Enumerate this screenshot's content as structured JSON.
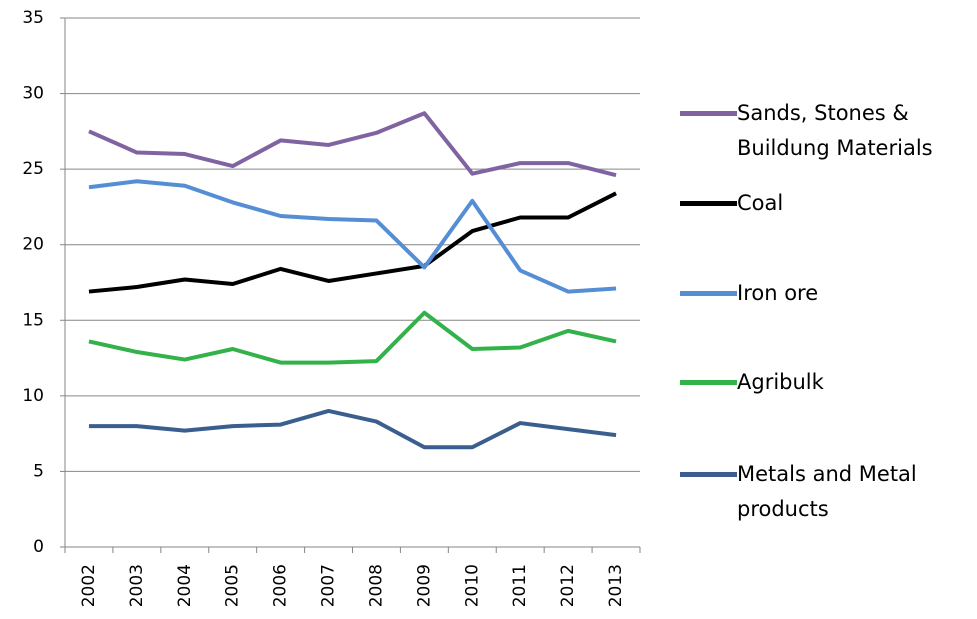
{
  "chart_data": {
    "type": "line",
    "categories": [
      "2002",
      "2003",
      "2004",
      "2005",
      "2006",
      "2007",
      "2008",
      "2009",
      "2010",
      "2011",
      "2012",
      "2013"
    ],
    "series": [
      {
        "name": "Sands, Stones & Buildung Materials",
        "color": "#8064a2",
        "values": [
          27.5,
          26.1,
          26.0,
          25.2,
          26.9,
          26.6,
          27.4,
          28.7,
          24.7,
          25.4,
          25.4,
          24.6
        ]
      },
      {
        "name": "Coal",
        "color": "#000000",
        "values": [
          16.9,
          17.2,
          17.7,
          17.4,
          18.4,
          17.6,
          18.1,
          18.6,
          20.9,
          21.8,
          21.8,
          23.4
        ]
      },
      {
        "name": "Iron ore",
        "color": "#558ed5",
        "values": [
          23.8,
          24.2,
          23.9,
          22.8,
          21.9,
          21.7,
          21.6,
          18.5,
          22.9,
          18.3,
          16.9,
          17.1
        ]
      },
      {
        "name": "Agribulk",
        "color": "#33b14a",
        "values": [
          13.6,
          12.9,
          12.4,
          13.1,
          12.2,
          12.2,
          12.3,
          15.5,
          13.1,
          13.2,
          14.3,
          13.6
        ]
      },
      {
        "name": "Metals and Metal products",
        "color": "#3a5f8e",
        "values": [
          8.0,
          8.0,
          7.7,
          8.0,
          8.1,
          9.0,
          8.3,
          6.6,
          6.6,
          8.2,
          7.8,
          7.4
        ]
      }
    ],
    "ylim": [
      0,
      35
    ],
    "yticks": [
      0,
      5,
      10,
      15,
      20,
      25,
      30,
      35
    ],
    "grid": true,
    "legend": "right"
  }
}
